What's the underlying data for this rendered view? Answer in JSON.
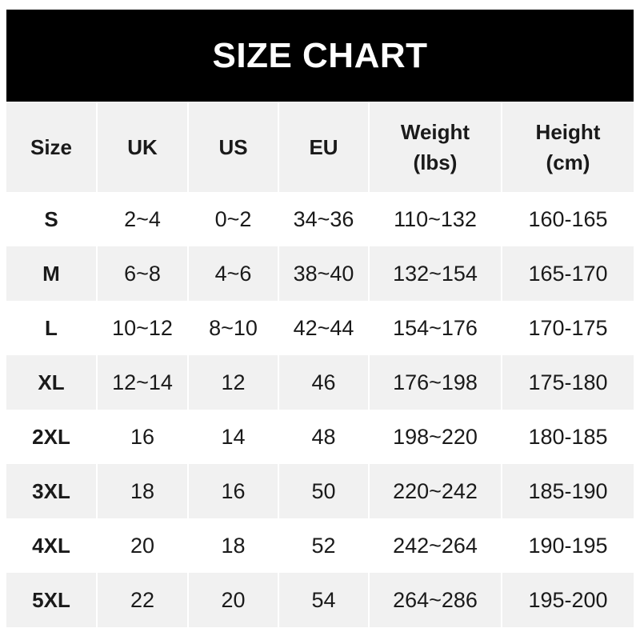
{
  "title": "SIZE CHART",
  "headers": [
    "Size",
    "UK",
    "US",
    "EU",
    "Weight\n(lbs)",
    "Height\n(cm)"
  ],
  "header_lines": {
    "weight": [
      "Weight",
      "(lbs)"
    ],
    "height": [
      "Height",
      "(cm)"
    ]
  },
  "rows": [
    [
      "S",
      "2~4",
      "0~2",
      "34~36",
      "110~132",
      "160-165"
    ],
    [
      "M",
      "6~8",
      "4~6",
      "38~40",
      "132~154",
      "165-170"
    ],
    [
      "L",
      "10~12",
      "8~10",
      "42~44",
      "154~176",
      "170-175"
    ],
    [
      "XL",
      "12~14",
      "12",
      "46",
      "176~198",
      "175-180"
    ],
    [
      "2XL",
      "16",
      "14",
      "48",
      "198~220",
      "180-185"
    ],
    [
      "3XL",
      "18",
      "16",
      "50",
      "220~242",
      "185-190"
    ],
    [
      "4XL",
      "20",
      "18",
      "52",
      "242~264",
      "190-195"
    ],
    [
      "5XL",
      "22",
      "20",
      "54",
      "264~286",
      "195-200"
    ]
  ],
  "colors": {
    "banner": "#000000",
    "stripe": "#f1f1f1",
    "text": "#1a1a1a"
  }
}
